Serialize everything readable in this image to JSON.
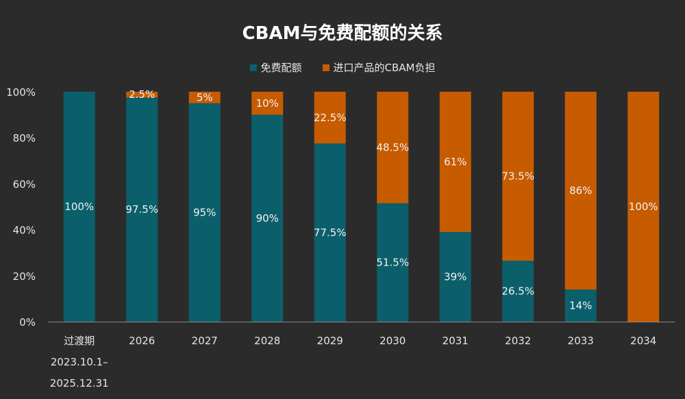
{
  "chart_data": {
    "type": "bar",
    "stacked": true,
    "title": "CBAM与免费配额的关系",
    "categories": [
      "过渡期\n2023.10.1–\n2025.12.31",
      "2026",
      "2027",
      "2028",
      "2029",
      "2030",
      "2031",
      "2032",
      "2033",
      "2034"
    ],
    "series": [
      {
        "name": "免费配额",
        "color": "#0b5f6b",
        "values": [
          100,
          97.5,
          95,
          90,
          77.5,
          51.5,
          39,
          26.5,
          14,
          0
        ],
        "labels": [
          "100%",
          "97.5%",
          "95%",
          "90%",
          "77.5%",
          "51.5%",
          "39%",
          "26.5%",
          "14%",
          ""
        ]
      },
      {
        "name": "进口产品的CBAM负担",
        "color": "#c75b00",
        "values": [
          0,
          2.5,
          5,
          10,
          22.5,
          48.5,
          61,
          73.5,
          86,
          100
        ],
        "labels": [
          "",
          "2.5%",
          "5%",
          "10%",
          "22.5%",
          "48.5%",
          "61%",
          "73.5%",
          "86%",
          "100%"
        ]
      }
    ],
    "ylim": [
      0,
      100
    ],
    "yticks": [
      "0%",
      "20%",
      "40%",
      "60%",
      "80%",
      "100%"
    ],
    "legend_position": "top",
    "grid": false
  }
}
